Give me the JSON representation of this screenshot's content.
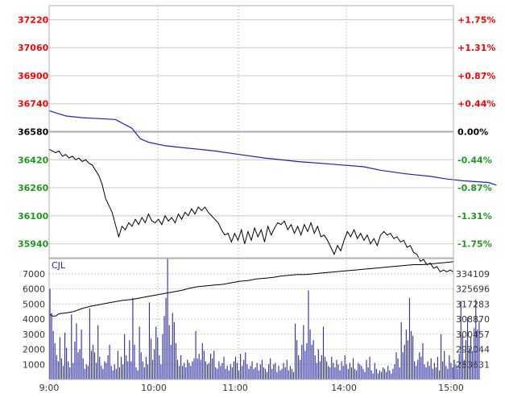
{
  "colors": {
    "up": "#ff0000",
    "down": "#1a9a1a",
    "flat": "#000000",
    "avg_line": "#2020c0",
    "price_line": "#000000",
    "volume_bar": "#3030a0",
    "grid": "#c8c8c8",
    "zero_line": "#aaaaaa",
    "frame": "#b0b0b0",
    "vol_label": "#2020c0",
    "axis_text": "#333333"
  },
  "chart_data": [
    {
      "type": "line",
      "panel": "price",
      "title": "",
      "x": [
        "9:00",
        "10:00",
        "11:00",
        "14:00",
        "15:00"
      ],
      "y_left_ticks": [
        "37220",
        "37060",
        "36900",
        "36740",
        "36580",
        "36420",
        "36260",
        "36100",
        "35940"
      ],
      "y_right_ticks": [
        "+1.75%",
        "+1.31%",
        "+0.87%",
        "+0.44%",
        "0.00%",
        "-0.44%",
        "-0.87%",
        "-1.31%",
        "-1.75%"
      ],
      "base_value": 36580,
      "ylim": [
        35860,
        37300
      ],
      "grid": true,
      "series": [
        {
          "role": "average",
          "points": [
            [
              0,
              36700
            ],
            [
              5,
              36685
            ],
            [
              10,
              36670
            ],
            [
              20,
              36660
            ],
            [
              30,
              36655
            ],
            [
              40,
              36650
            ],
            [
              50,
              36600
            ],
            [
              55,
              36540
            ],
            [
              60,
              36520
            ],
            [
              70,
              36500
            ],
            [
              80,
              36490
            ],
            [
              90,
              36480
            ],
            [
              100,
              36470
            ],
            [
              115,
              36450
            ],
            [
              130,
              36430
            ],
            [
              150,
              36410
            ],
            [
              170,
              36395
            ],
            [
              190,
              36380
            ],
            [
              200,
              36360
            ],
            [
              215,
              36340
            ],
            [
              230,
              36325
            ],
            [
              240,
              36310
            ],
            [
              250,
              36300
            ],
            [
              265,
              36290
            ],
            [
              270,
              36275
            ]
          ]
        },
        {
          "role": "price",
          "points": [
            [
              0,
              36480
            ],
            [
              2,
              36470
            ],
            [
              4,
              36460
            ],
            [
              6,
              36470
            ],
            [
              8,
              36440
            ],
            [
              10,
              36450
            ],
            [
              12,
              36430
            ],
            [
              14,
              36440
            ],
            [
              16,
              36420
            ],
            [
              18,
              36430
            ],
            [
              20,
              36410
            ],
            [
              22,
              36420
            ],
            [
              24,
              36400
            ],
            [
              26,
              36390
            ],
            [
              28,
              36360
            ],
            [
              30,
              36330
            ],
            [
              32,
              36280
            ],
            [
              34,
              36200
            ],
            [
              36,
              36160
            ],
            [
              38,
              36120
            ],
            [
              40,
              36050
            ],
            [
              42,
              35980
            ],
            [
              44,
              36040
            ],
            [
              46,
              36020
            ],
            [
              48,
              36060
            ],
            [
              50,
              36040
            ],
            [
              52,
              36080
            ],
            [
              54,
              36050
            ],
            [
              56,
              36090
            ],
            [
              58,
              36060
            ],
            [
              60,
              36110
            ],
            [
              62,
              36070
            ],
            [
              64,
              36060
            ],
            [
              66,
              36080
            ],
            [
              68,
              36050
            ],
            [
              70,
              36100
            ],
            [
              72,
              36070
            ],
            [
              74,
              36090
            ],
            [
              76,
              36060
            ],
            [
              78,
              36110
            ],
            [
              80,
              36080
            ],
            [
              82,
              36120
            ],
            [
              84,
              36100
            ],
            [
              86,
              36140
            ],
            [
              88,
              36110
            ],
            [
              90,
              36150
            ],
            [
              92,
              36130
            ],
            [
              94,
              36150
            ],
            [
              96,
              36120
            ],
            [
              98,
              36100
            ],
            [
              100,
              36080
            ],
            [
              102,
              36060
            ],
            [
              104,
              36020
            ],
            [
              106,
              35990
            ],
            [
              108,
              36000
            ],
            [
              110,
              35950
            ],
            [
              112,
              36000
            ],
            [
              114,
              35960
            ],
            [
              116,
              36020
            ],
            [
              118,
              35940
            ],
            [
              120,
              36010
            ],
            [
              122,
              35960
            ],
            [
              124,
              36030
            ],
            [
              126,
              35980
            ],
            [
              128,
              36020
            ],
            [
              130,
              35950
            ],
            [
              132,
              36040
            ],
            [
              134,
              35990
            ],
            [
              136,
              36030
            ],
            [
              138,
              36060
            ],
            [
              140,
              36050
            ],
            [
              142,
              36070
            ],
            [
              144,
              36020
            ],
            [
              146,
              36050
            ],
            [
              148,
              36000
            ],
            [
              150,
              36040
            ],
            [
              152,
              35990
            ],
            [
              154,
              36050
            ],
            [
              156,
              36010
            ],
            [
              158,
              36060
            ],
            [
              160,
              36000
            ],
            [
              162,
              36040
            ],
            [
              164,
              35980
            ],
            [
              166,
              35990
            ],
            [
              168,
              35960
            ],
            [
              170,
              35920
            ],
            [
              172,
              35880
            ],
            [
              174,
              35930
            ],
            [
              176,
              35900
            ],
            [
              178,
              35960
            ],
            [
              180,
              36010
            ],
            [
              182,
              35980
            ],
            [
              184,
              36020
            ],
            [
              186,
              35970
            ],
            [
              188,
              36000
            ],
            [
              190,
              35960
            ],
            [
              192,
              35990
            ],
            [
              194,
              35940
            ],
            [
              196,
              35970
            ],
            [
              198,
              35930
            ],
            [
              200,
              35990
            ],
            [
              202,
              36010
            ],
            [
              204,
              35990
            ],
            [
              206,
              36000
            ],
            [
              208,
              35970
            ],
            [
              210,
              35980
            ],
            [
              212,
              35950
            ],
            [
              214,
              35960
            ],
            [
              216,
              35920
            ],
            [
              218,
              35930
            ],
            [
              220,
              35890
            ],
            [
              222,
              35880
            ],
            [
              224,
              35840
            ],
            [
              226,
              35850
            ],
            [
              228,
              35820
            ],
            [
              230,
              35830
            ],
            [
              232,
              35800
            ],
            [
              234,
              35810
            ],
            [
              236,
              35780
            ],
            [
              238,
              35790
            ],
            [
              240,
              35780
            ],
            [
              242,
              35790
            ],
            [
              244,
              35780
            ]
          ]
        }
      ]
    },
    {
      "type": "bar",
      "panel": "volume",
      "label": "CJL",
      "y_left_ticks": [
        "7000",
        "6000",
        "5000",
        "4000",
        "3000",
        "2000",
        "1000"
      ],
      "y_right_ticks": [
        "334109",
        "325696",
        "317283",
        "308870",
        "300457",
        "292044",
        "283631"
      ],
      "ylim": [
        0,
        8000
      ],
      "cum_base": 275218,
      "cum_per_unit": 8413,
      "grid": true,
      "series": [
        {
          "role": "volume",
          "values": [
            6000,
            4400,
            3200,
            2400,
            1600,
            1200,
            2800,
            1400,
            900,
            3100,
            2100,
            1200,
            800,
            4300,
            1100,
            2500,
            3700,
            1800,
            2000,
            3300,
            1400,
            700,
            1000,
            900,
            4700,
            1900,
            2300,
            1800,
            1100,
            3600,
            1500,
            900,
            700,
            1200,
            1100,
            1600,
            2300,
            900,
            600,
            1000,
            700,
            1900,
            800,
            1500,
            1000,
            3000,
            1600,
            1200,
            2600,
            1200,
            5400,
            2300,
            800,
            600,
            3500,
            1800,
            1200,
            800,
            1500,
            1000,
            5100,
            2700,
            1300,
            2000,
            3500,
            2800,
            1600,
            1000,
            3000,
            4200,
            5400,
            8000,
            3600,
            2300,
            4400,
            3800,
            2400,
            1300,
            900,
            1600,
            900,
            1100,
            800,
            1300,
            1100,
            900,
            1200,
            1400,
            3200,
            1400,
            1700,
            1300,
            2400,
            1900,
            1200,
            1000,
            1100,
            1700,
            1400,
            1900,
            800,
            700,
            1200,
            900,
            1100,
            1500,
            700,
            900,
            600,
            1000,
            800,
            1200,
            1500,
            1100,
            600,
            1700,
            900,
            1300,
            1800,
            1000,
            700,
            900,
            1200,
            700,
            800,
            1100,
            600,
            1000,
            1300,
            800,
            700,
            500,
            1000,
            1400,
            700,
            1000,
            1100,
            500,
            900,
            600,
            700,
            1100,
            800,
            1300,
            600,
            900,
            700,
            500,
            3700,
            2600,
            1600,
            1300,
            2300,
            3600,
            1900,
            2400,
            5900,
            3300,
            2300,
            2600,
            1600,
            1100,
            2000,
            1200,
            1600,
            3500,
            1500,
            1200,
            900,
            800,
            1500,
            1100,
            800,
            1300,
            1000,
            600,
            1200,
            900,
            1600,
            1000,
            700,
            1100,
            800,
            1400,
            700,
            600,
            1100,
            1000,
            900,
            700,
            500,
            1300,
            800,
            1500,
            600,
            400,
            1100,
            700,
            400,
            600,
            500,
            800,
            700,
            500,
            900,
            600,
            400,
            700,
            1000,
            1800,
            1400,
            800,
            3800,
            1800,
            2300,
            3300,
            2600,
            5400,
            3200,
            2900,
            1200,
            900,
            1300,
            1800,
            1500,
            2400,
            1000,
            800,
            1200,
            900,
            1400,
            700,
            1100,
            800,
            1500,
            600,
            3000,
            1200,
            1900,
            900,
            700,
            1600,
            1100,
            800,
            1300,
            1000,
            700,
            1700,
            5200,
            3000,
            1300,
            2600,
            4100,
            2100,
            2800,
            1900,
            3400,
            5300,
            3300,
            3900
          ]
        },
        {
          "role": "cumulative",
          "points": [
            [
              0,
              4350
            ],
            [
              2,
              4200
            ],
            [
              4,
              4200
            ],
            [
              6,
              4350
            ],
            [
              10,
              4400
            ],
            [
              15,
              4500
            ],
            [
              20,
              4700
            ],
            [
              25,
              4850
            ],
            [
              30,
              4950
            ],
            [
              35,
              5050
            ],
            [
              40,
              5150
            ],
            [
              45,
              5250
            ],
            [
              50,
              5300
            ],
            [
              55,
              5400
            ],
            [
              60,
              5500
            ],
            [
              65,
              5600
            ],
            [
              70,
              5700
            ],
            [
              75,
              5800
            ],
            [
              80,
              5900
            ],
            [
              85,
              6050
            ],
            [
              90,
              6150
            ],
            [
              95,
              6200
            ],
            [
              100,
              6250
            ],
            [
              105,
              6300
            ],
            [
              110,
              6400
            ],
            [
              115,
              6500
            ],
            [
              120,
              6550
            ],
            [
              125,
              6650
            ],
            [
              130,
              6700
            ],
            [
              135,
              6750
            ],
            [
              140,
              6850
            ],
            [
              145,
              6900
            ],
            [
              150,
              6950
            ],
            [
              155,
              6950
            ],
            [
              160,
              7000
            ],
            [
              165,
              7050
            ],
            [
              170,
              7100
            ],
            [
              175,
              7150
            ],
            [
              180,
              7200
            ],
            [
              185,
              7250
            ],
            [
              190,
              7300
            ],
            [
              195,
              7350
            ],
            [
              200,
              7400
            ],
            [
              205,
              7450
            ],
            [
              210,
              7500
            ],
            [
              215,
              7550
            ],
            [
              220,
              7600
            ],
            [
              225,
              7600
            ],
            [
              230,
              7650
            ],
            [
              235,
              7700
            ],
            [
              240,
              7750
            ],
            [
              244,
              7800
            ]
          ]
        }
      ]
    }
  ]
}
